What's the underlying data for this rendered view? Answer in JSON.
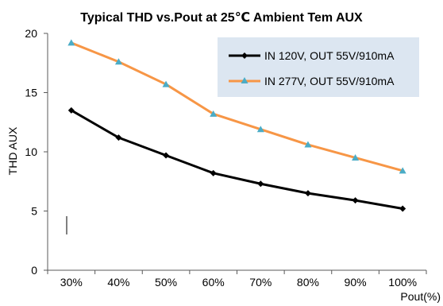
{
  "chart_data": {
    "type": "line",
    "title": "Typical THD vs.Pout at 25℃ Ambient Tem AUX",
    "ylabel": "THD AUX",
    "xlabel": "Pout(%)",
    "categories": [
      "30%",
      "40%",
      "50%",
      "60%",
      "70%",
      "80%",
      "90%",
      "100%"
    ],
    "ylim": [
      0,
      20
    ],
    "yticks": [
      0,
      5,
      10,
      15,
      20
    ],
    "grid": false,
    "legend_position": "top-right",
    "series": [
      {
        "name": "IN 120V, OUT 55V/910mA",
        "values": [
          13.5,
          11.2,
          9.7,
          8.2,
          7.3,
          6.5,
          5.9,
          5.2
        ],
        "color": "#000000",
        "marker": "diamond"
      },
      {
        "name": "IN 277V, OUT 55V/910mA",
        "values": [
          19.2,
          17.6,
          15.7,
          13.2,
          11.9,
          10.6,
          9.5,
          8.4
        ],
        "color": "#F79646",
        "marker": "triangle",
        "marker_color": "#4BACC6"
      }
    ]
  },
  "colors": {
    "legend_background": "#DCE6F1",
    "axis": "#595959"
  }
}
